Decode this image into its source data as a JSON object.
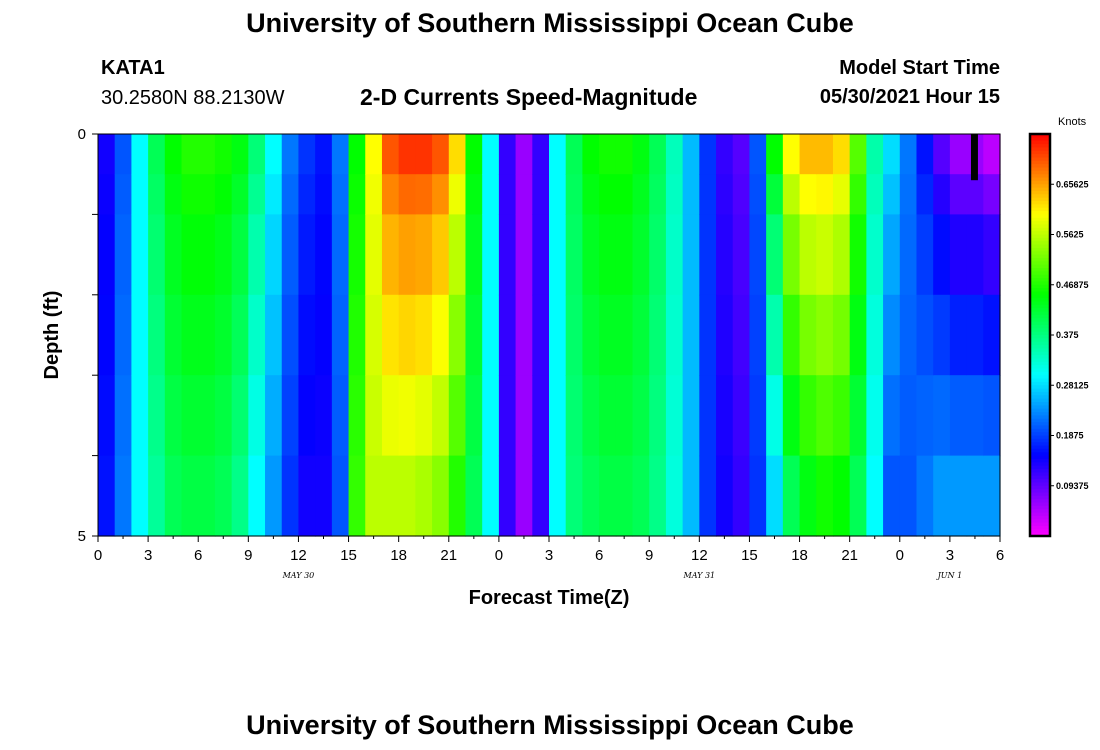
{
  "header": {
    "title": "University of Southern Mississippi Ocean Cube",
    "station": "KATA1",
    "coords": "30.2580N  88.2130W",
    "plot_title": "2-D Currents Speed-Magnitude",
    "model_start_label": "Model Start Time",
    "model_start_value": "05/30/2021 Hour 15"
  },
  "footer": {
    "title": "University of Southern Mississippi Ocean Cube"
  },
  "chart_data": {
    "type": "heatmap",
    "title": "2-D Currents Speed-Magnitude",
    "xlabel": "Forecast Time(Z)",
    "ylabel": "Depth (ft)",
    "units": "Knots",
    "x_tick_labels": [
      "0",
      "3",
      "6",
      "9",
      "12",
      "15",
      "18",
      "21",
      "0",
      "3",
      "6",
      "9",
      "12",
      "15",
      "18",
      "21",
      "0",
      "3",
      "6"
    ],
    "date_labels": [
      {
        "text": "MAY 30",
        "at_hour": 12
      },
      {
        "text": "MAY 31",
        "at_hour": 36
      },
      {
        "text": "JUN 1",
        "at_hour": 51
      }
    ],
    "y_tick_labels": [
      "0",
      "5"
    ],
    "ylim": [
      0,
      5
    ],
    "xlim_hours": [
      0,
      54
    ],
    "colorbar": {
      "min": 0.0,
      "max": 0.75,
      "tick_values": [
        0.09375,
        0.1875,
        0.28125,
        0.375,
        0.46875,
        0.5625,
        0.65625
      ],
      "tick_labels": [
        "0.09375",
        "0.1875",
        "0.28125",
        "0.375",
        "0.46875",
        "0.5625",
        "0.65625"
      ]
    },
    "depth_layers_ft": [
      0.25,
      0.75,
      1.5,
      2.5,
      3.5,
      4.5
    ],
    "time_hours": [
      0,
      1,
      2,
      3,
      4,
      5,
      6,
      7,
      8,
      9,
      10,
      11,
      12,
      13,
      14,
      15,
      16,
      17,
      18,
      19,
      20,
      21,
      22,
      23,
      24,
      25,
      26,
      27,
      28,
      29,
      30,
      31,
      32,
      33,
      34,
      35,
      36,
      37,
      38,
      39,
      40,
      41,
      42,
      43,
      44,
      45,
      46,
      47,
      48,
      49,
      50,
      51,
      52,
      53
    ],
    "surface_speed_knots": [
      0.14,
      0.2,
      0.3,
      0.4,
      0.45,
      0.47,
      0.47,
      0.46,
      0.44,
      0.38,
      0.3,
      0.22,
      0.18,
      0.16,
      0.22,
      0.45,
      0.6,
      0.7,
      0.72,
      0.72,
      0.7,
      0.62,
      0.45,
      0.3,
      0.12,
      0.06,
      0.12,
      0.3,
      0.4,
      0.45,
      0.46,
      0.46,
      0.44,
      0.4,
      0.34,
      0.26,
      0.18,
      0.12,
      0.1,
      0.2,
      0.45,
      0.6,
      0.64,
      0.64,
      0.62,
      0.5,
      0.35,
      0.28,
      0.22,
      0.16,
      0.1,
      0.06,
      0.06,
      0.04
    ],
    "bottom_speed_knots": [
      0.16,
      0.22,
      0.3,
      0.36,
      0.4,
      0.41,
      0.41,
      0.4,
      0.37,
      0.3,
      0.24,
      0.18,
      0.14,
      0.14,
      0.2,
      0.48,
      0.56,
      0.56,
      0.56,
      0.55,
      0.53,
      0.47,
      0.4,
      0.3,
      0.12,
      0.06,
      0.12,
      0.3,
      0.38,
      0.4,
      0.41,
      0.41,
      0.4,
      0.37,
      0.32,
      0.26,
      0.18,
      0.14,
      0.12,
      0.18,
      0.28,
      0.4,
      0.44,
      0.46,
      0.45,
      0.4,
      0.3,
      0.2,
      0.2,
      0.22,
      0.24,
      0.24,
      0.24,
      0.24
    ],
    "marker": {
      "time_hour": 52.5,
      "depth_top_ft": 0,
      "depth_bottom_ft": 0.5
    }
  }
}
